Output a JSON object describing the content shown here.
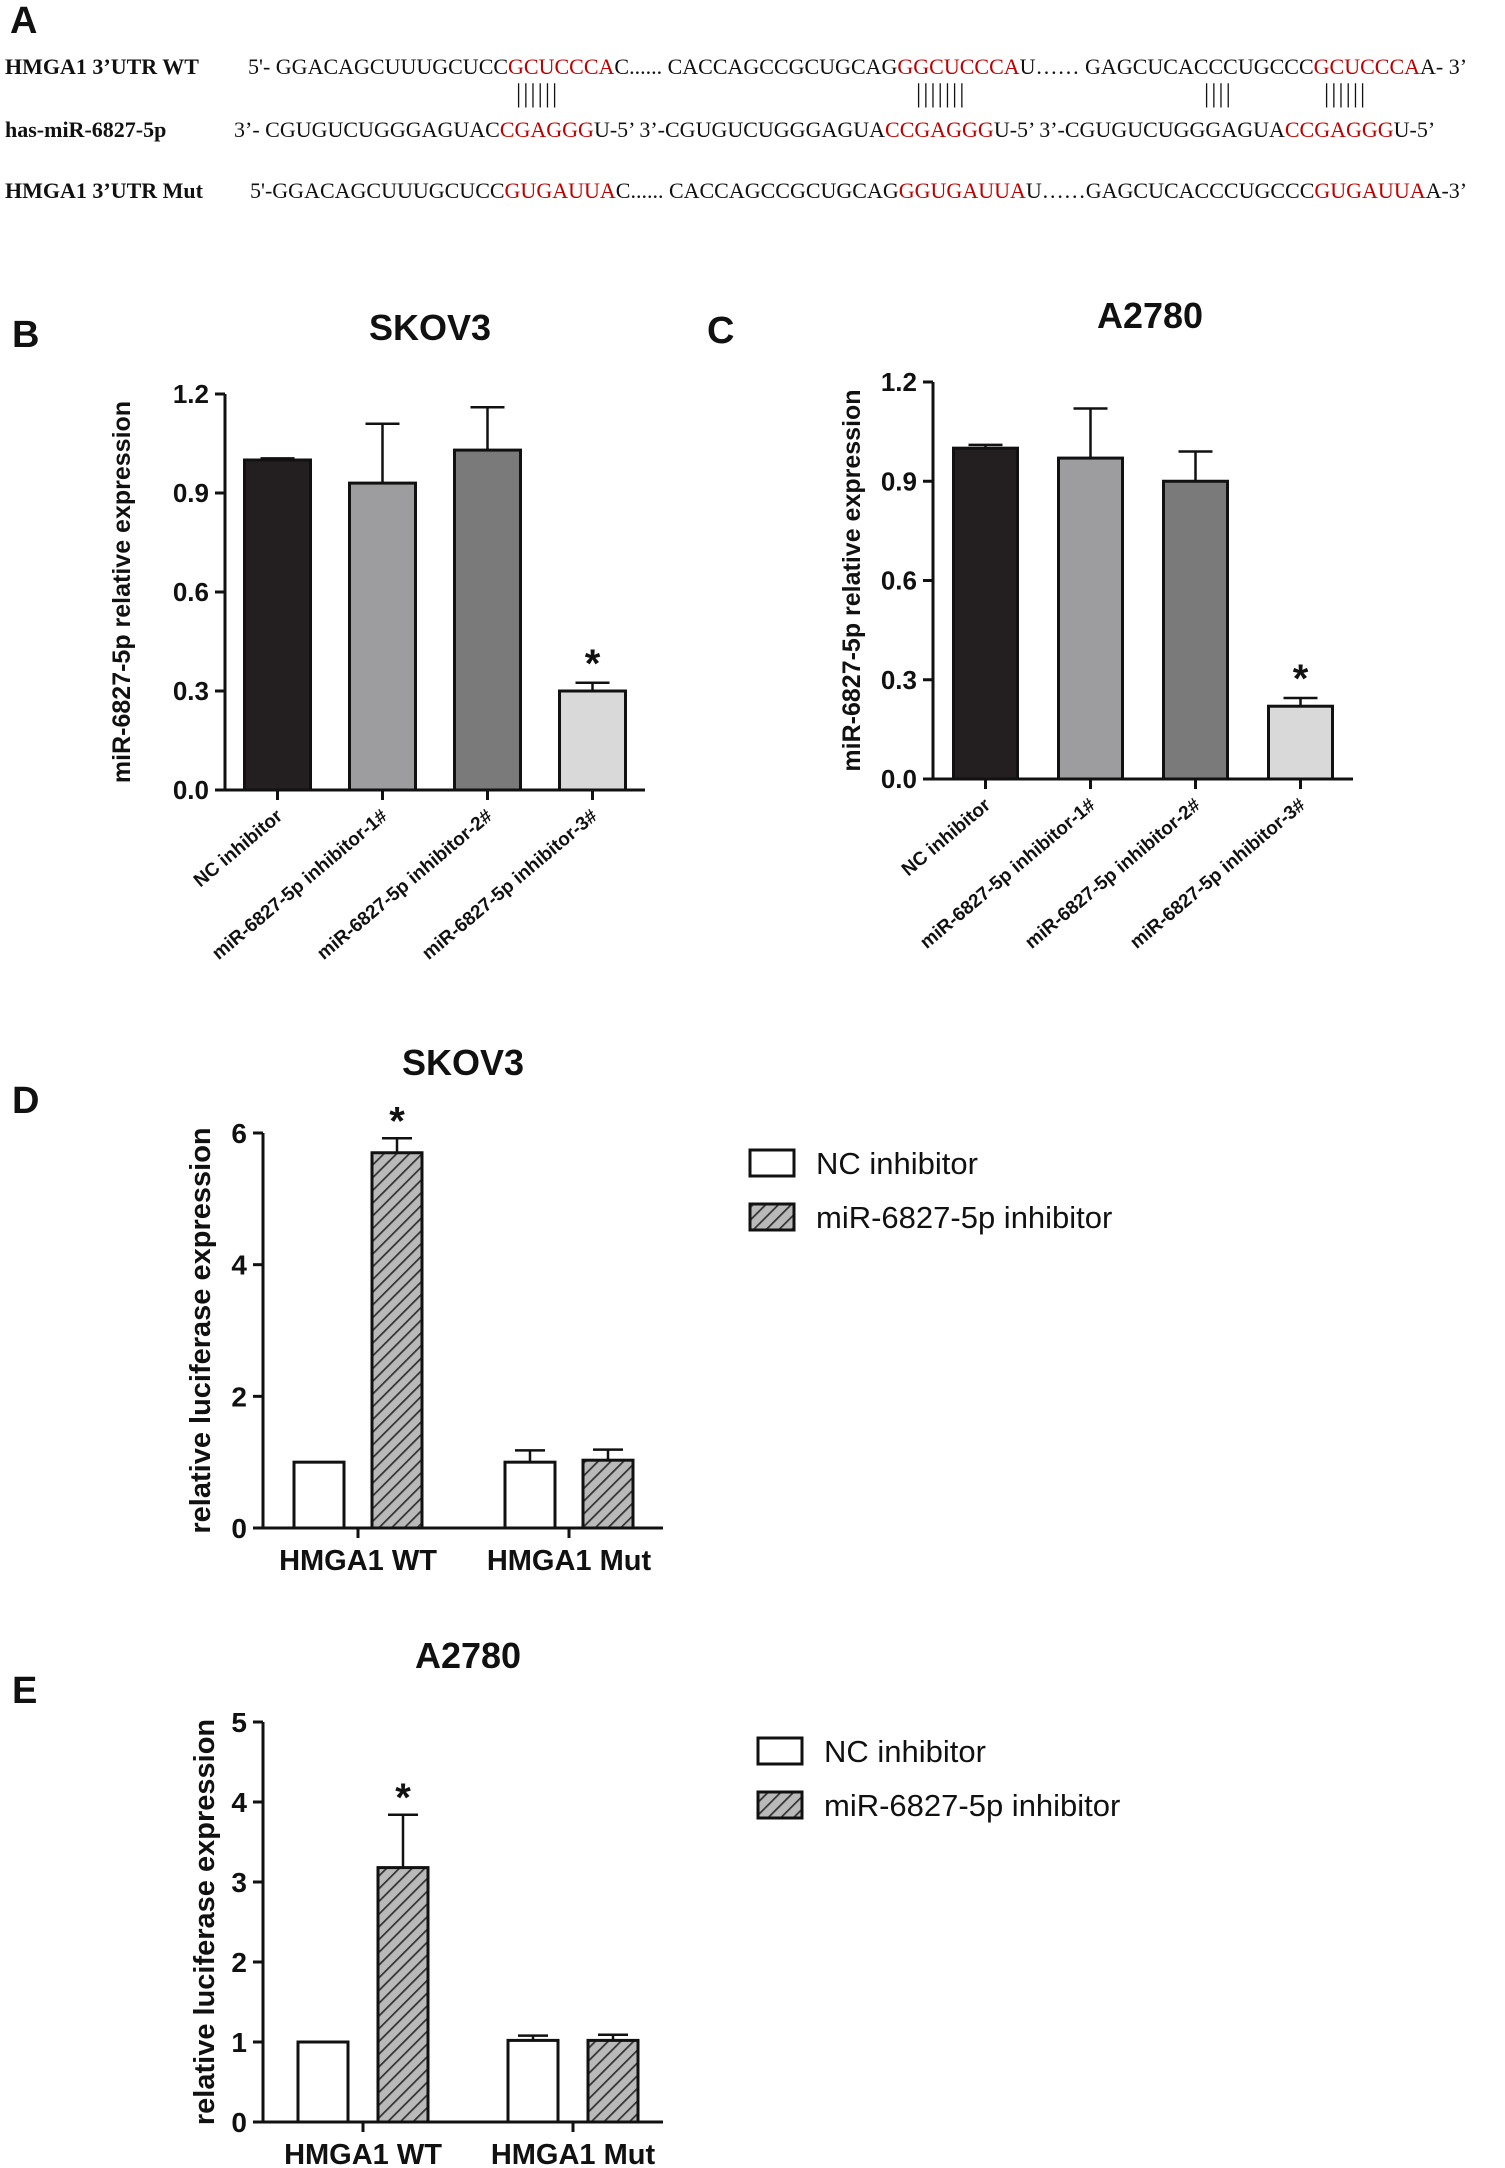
{
  "panels": {
    "a": "A",
    "b": "B",
    "c": "C",
    "d": "D",
    "e": "E"
  },
  "sequences": {
    "wt_label": "HMGA1 3’UTR WT",
    "mir_label": "has-miR-6827-5p",
    "mut_label": "HMGA1 3’UTR Mut",
    "wt_segments": [
      {
        "t": "5'- GGACAGCUUUGCUCC",
        "hl": false
      },
      {
        "t": "GCUCCCA",
        "hl": true
      },
      {
        "t": "C...... CACCAGCCGCUGCAG",
        "hl": false
      },
      {
        "t": "GGCUCCCA",
        "hl": true
      },
      {
        "t": "U…… GAGCUCACCCUGCCC",
        "hl": false
      },
      {
        "t": "GCUCCCA",
        "hl": true
      },
      {
        "t": "A- 3’",
        "hl": false
      }
    ],
    "mir_segments": [
      {
        "t": "3’- CGUGUCUGGGAGUAC",
        "hl": false
      },
      {
        "t": "CGAGGG",
        "hl": true
      },
      {
        "t": "U-5’ 3’-CGUGUCUGGGAGUA",
        "hl": false
      },
      {
        "t": "CCGAGGG",
        "hl": true
      },
      {
        "t": "U-5’   3’-CGUGUCUGGGAGUA",
        "hl": false
      },
      {
        "t": "CCGAGGG",
        "hl": true
      },
      {
        "t": "U-5’",
        "hl": false
      }
    ],
    "mut_segments": [
      {
        "t": "5'-GGACAGCUUUGCUCC",
        "hl": false
      },
      {
        "t": "GUGAUUA",
        "hl": true
      },
      {
        "t": "C...... CACCAGCCGCUGCAG",
        "hl": false
      },
      {
        "t": "GGUGAUUA",
        "hl": true
      },
      {
        "t": "U……GAGCUCACCCUGCCC",
        "hl": false
      },
      {
        "t": "GUGAUUA",
        "hl": true
      },
      {
        "t": "A-3’",
        "hl": false
      }
    ],
    "pairs_1": "||||||",
    "pairs_2": "|||||||",
    "pairs_3a": "||||",
    "pairs_3b": "||||||"
  },
  "chart_data": [
    {
      "id": "B",
      "type": "bar",
      "title": "SKOV3",
      "ylabel": "miR-6827-5p relative expression",
      "ylim": [
        0,
        1.2
      ],
      "yticks": [
        "0.0",
        "0.3",
        "0.6",
        "0.9",
        "1.2"
      ],
      "categories": [
        "NC inhibitor",
        "miR-6827-5p inhibitor-1#",
        "miR-6827-5p inhibitor-2#",
        "miR-6827-5p inhibitor-3#"
      ],
      "values": [
        1.0,
        0.93,
        1.03,
        0.3
      ],
      "errors": [
        0.005,
        0.18,
        0.13,
        0.025
      ],
      "colors": [
        "#231f20",
        "#9d9c9e",
        "#7a7a7a",
        "#d9d9d9"
      ],
      "significance": [
        "",
        "",
        "",
        "*"
      ]
    },
    {
      "id": "C",
      "type": "bar",
      "title": "A2780",
      "ylabel": "miR-6827-5p relative expression",
      "ylim": [
        0,
        1.2
      ],
      "yticks": [
        "0.0",
        "0.3",
        "0.6",
        "0.9",
        "1.2"
      ],
      "categories": [
        "NC inhibitor",
        "miR-6827-5p inhibitor-1#",
        "miR-6827-5p inhibitor-2#",
        "miR-6827-5p inhibitor-3#"
      ],
      "values": [
        1.0,
        0.97,
        0.9,
        0.22
      ],
      "errors": [
        0.01,
        0.15,
        0.09,
        0.025
      ],
      "colors": [
        "#231f20",
        "#9d9c9e",
        "#7a7a7a",
        "#d9d9d9"
      ],
      "significance": [
        "",
        "",
        "",
        "*"
      ]
    },
    {
      "id": "D",
      "type": "bar",
      "title": "SKOV3",
      "ylabel": "relative luciferase expression",
      "ylim": [
        0,
        6
      ],
      "yticks": [
        "0",
        "2",
        "4",
        "6"
      ],
      "categories": [
        "HMGA1 WT",
        "HMGA1 Mut"
      ],
      "series": [
        {
          "name": "NC inhibitor",
          "values": [
            1.0,
            1.0
          ],
          "errors": [
            0.0,
            0.18
          ],
          "pattern": "open"
        },
        {
          "name": "miR-6827-5p inhibitor",
          "values": [
            5.7,
            1.03
          ],
          "errors": [
            0.22,
            0.16
          ],
          "pattern": "hatched"
        }
      ],
      "significance": [
        [
          "",
          "*"
        ],
        [
          "",
          ""
        ]
      ],
      "legend": "right"
    },
    {
      "id": "E",
      "type": "bar",
      "title": "A2780",
      "ylabel": "relative luciferase expression",
      "ylim": [
        0,
        5
      ],
      "yticks": [
        "0",
        "1",
        "2",
        "3",
        "4",
        "5"
      ],
      "categories": [
        "HMGA1 WT",
        "HMGA1 Mut"
      ],
      "series": [
        {
          "name": "NC inhibitor",
          "values": [
            1.0,
            1.02
          ],
          "errors": [
            0.0,
            0.06
          ],
          "pattern": "open"
        },
        {
          "name": "miR-6827-5p inhibitor",
          "values": [
            3.18,
            1.02
          ],
          "errors": [
            0.66,
            0.07
          ],
          "pattern": "hatched"
        }
      ],
      "significance": [
        [
          "",
          "*"
        ],
        [
          "",
          ""
        ]
      ],
      "legend": "right"
    }
  ]
}
